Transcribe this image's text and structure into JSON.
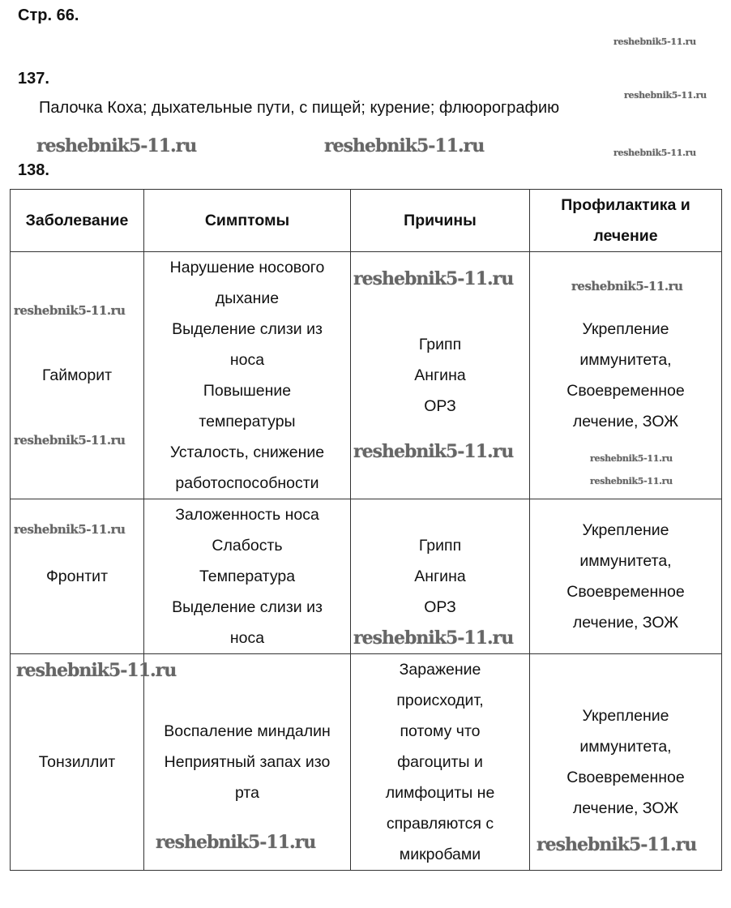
{
  "page_label": "Стр. 66.",
  "tasks": [
    {
      "number": "137.",
      "answer": "Палочка Коха; дыхательные пути, с пищей; курение; флюорографию"
    },
    {
      "number": "138."
    }
  ],
  "table": {
    "headers": [
      "Заболевание",
      "Симптомы",
      "Причины",
      "Профилактика и\nлечение"
    ],
    "rows": [
      {
        "disease": "Гайморит",
        "symptoms": "Нарушение носового\nдыхание\nВыделение слизи из\nноса\nПовышение\nтемпературы\nУсталость, снижение\nработоспособности",
        "causes": "Грипп\nАнгина\nОРЗ",
        "prevention": "Укрепление\nиммунитета,\nСвоевременное\nлечение, ЗОЖ"
      },
      {
        "disease": "Фронтит",
        "symptoms": "Заложенность носа\nСлабость\nТемпература\nВыделение слизи из\nноса",
        "causes": "Грипп\nАнгина\nОРЗ",
        "prevention": "Укрепление\nиммунитета,\nСвоевременное\nлечение, ЗОЖ"
      },
      {
        "disease": "Тонзиллит",
        "symptoms": "Воспаление миндалин\nНеприятный запах изо\nрта",
        "causes": "Заражение\nпроисходит,\nпотому что\nфагоциты и\nлимфоциты не\nсправляются с\nмикробами",
        "prevention": "Укрепление\nиммунитета,\nСвоевременное\nлечение, ЗОЖ"
      }
    ]
  },
  "watermark": "reshebnik5-11.ru"
}
